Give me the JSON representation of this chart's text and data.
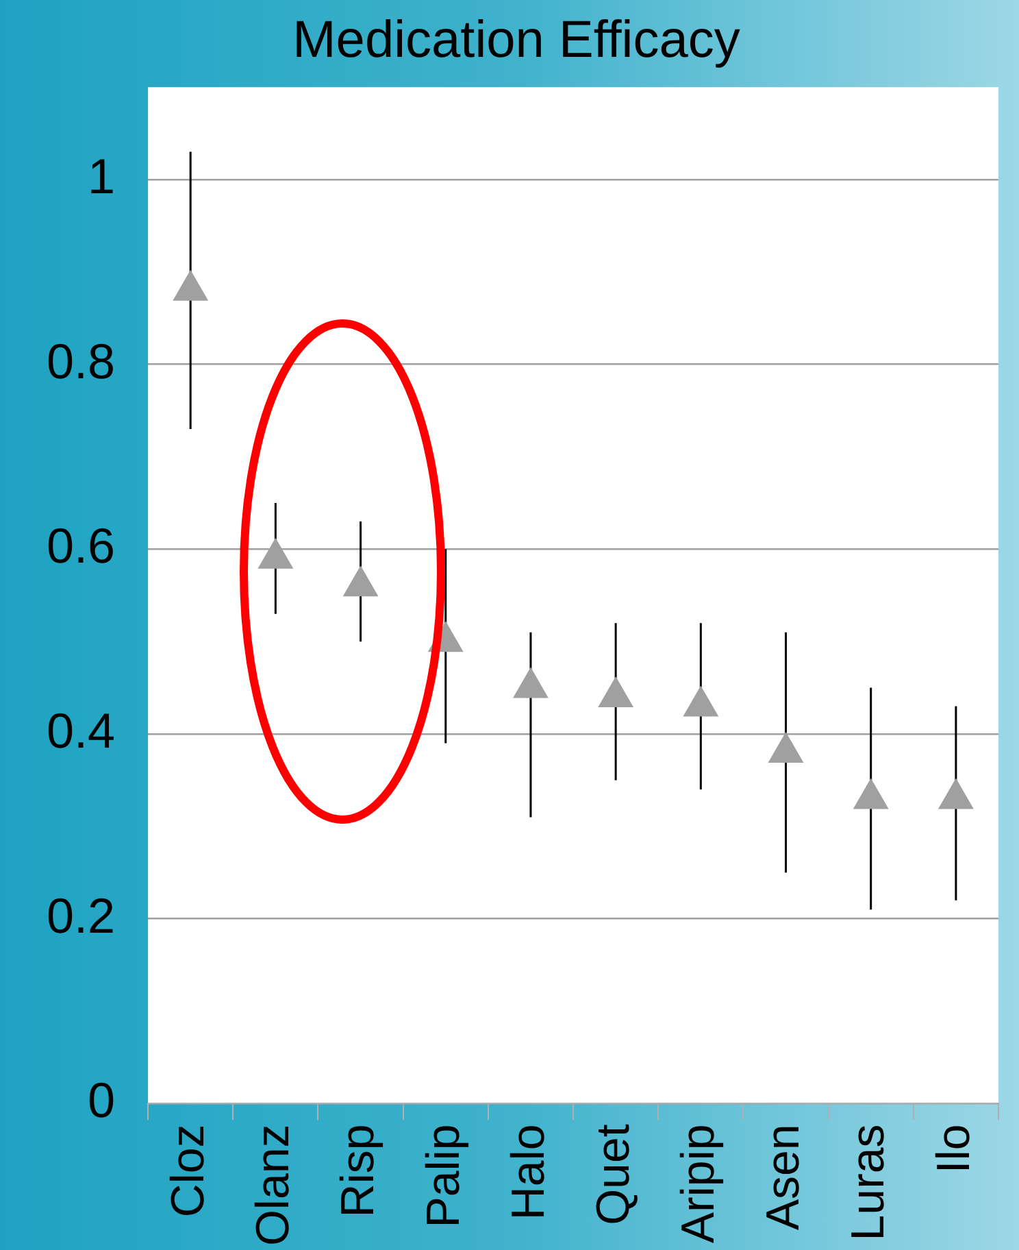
{
  "chart_data": {
    "type": "scatter",
    "title": "Medication Efficacy",
    "categories": [
      "Cloz",
      "Olanz",
      "Risp",
      "Palip",
      "Halo",
      "Quet",
      "Aripip",
      "Asen",
      "Luras",
      "Ilo"
    ],
    "values": [
      0.88,
      0.59,
      0.56,
      0.5,
      0.45,
      0.44,
      0.43,
      0.38,
      0.33,
      0.33
    ],
    "errors": [
      [
        0.73,
        1.03
      ],
      [
        0.53,
        0.65
      ],
      [
        0.5,
        0.63
      ],
      [
        0.39,
        0.6
      ],
      [
        0.31,
        0.51
      ],
      [
        0.35,
        0.52
      ],
      [
        0.34,
        0.52
      ],
      [
        0.25,
        0.51
      ],
      [
        0.21,
        0.45
      ],
      [
        0.22,
        0.43
      ]
    ],
    "color": "#a0a0a0",
    "marker": "triangle",
    "ylim": [
      0,
      1.1
    ],
    "yticks": [
      0,
      0.2,
      0.4,
      0.6,
      0.8,
      1
    ],
    "grid": "y",
    "legend": false
  }
}
